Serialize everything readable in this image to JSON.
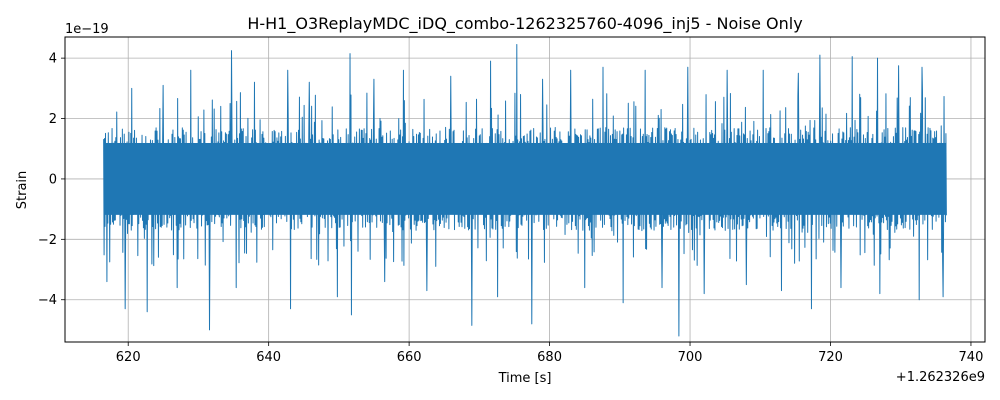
{
  "chart_data": {
    "type": "line",
    "title": "H-H1_O3ReplayMDC_iDQ_combo-1262325760-4096_inj5 - Noise Only",
    "xlabel": "Time [s]",
    "ylabel": "Strain",
    "x_offset_label": "+1.262326e9",
    "y_multiplier_label": "1e−19",
    "xlim": [
      611.0,
      742.0
    ],
    "ylim": [
      -5.4,
      4.7
    ],
    "x_ticks": [
      620,
      640,
      660,
      680,
      700,
      720,
      740
    ],
    "x_tick_labels": [
      "620",
      "640",
      "660",
      "680",
      "700",
      "720",
      "740"
    ],
    "y_ticks": [
      -4,
      -2,
      0,
      2,
      4
    ],
    "y_tick_labels": [
      "−4",
      "−2",
      "0",
      "2",
      "4"
    ],
    "grid": true,
    "series": [
      {
        "color": "#1f77b4",
        "x_start": 616.5,
        "x_end": 736.5,
        "typical_band": [
          -1.7,
          1.7
        ],
        "samples_shown_as": "dense noise trace",
        "peaks": [
          [
            617.0,
            3.4
          ],
          [
            620.5,
            3.0
          ],
          [
            622.7,
            4.2
          ],
          [
            625.0,
            3.1
          ],
          [
            628.9,
            3.6
          ],
          [
            634.7,
            4.25
          ],
          [
            638.0,
            3.2
          ],
          [
            642.7,
            3.6
          ],
          [
            645.8,
            3.2
          ],
          [
            651.6,
            4.15
          ],
          [
            655.0,
            3.3
          ],
          [
            659.2,
            3.6
          ],
          [
            665.9,
            3.4
          ],
          [
            671.6,
            3.9
          ],
          [
            675.3,
            4.45
          ],
          [
            679.0,
            3.3
          ],
          [
            683.0,
            3.6
          ],
          [
            687.6,
            3.7
          ],
          [
            693.6,
            3.6
          ],
          [
            699.7,
            3.7
          ],
          [
            705.3,
            3.6
          ],
          [
            710.4,
            3.6
          ],
          [
            715.4,
            3.5
          ],
          [
            718.5,
            4.1
          ],
          [
            723.1,
            4.05
          ],
          [
            726.7,
            4.0
          ],
          [
            729.7,
            3.75
          ],
          [
            733.0,
            3.7
          ],
          [
            736.0,
            3.2
          ]
        ],
        "troughs": [
          [
            617.0,
            -3.4
          ],
          [
            619.6,
            -4.3
          ],
          [
            622.7,
            -4.4
          ],
          [
            627.0,
            -3.6
          ],
          [
            631.6,
            -5.0
          ],
          [
            635.4,
            -3.6
          ],
          [
            643.1,
            -4.3
          ],
          [
            649.8,
            -3.9
          ],
          [
            651.8,
            -4.5
          ],
          [
            656.5,
            -3.4
          ],
          [
            662.5,
            -3.7
          ],
          [
            668.9,
            -4.85
          ],
          [
            672.6,
            -3.9
          ],
          [
            677.5,
            -4.8
          ],
          [
            685.0,
            -3.6
          ],
          [
            690.5,
            -4.1
          ],
          [
            696.0,
            -3.6
          ],
          [
            698.4,
            -5.2
          ],
          [
            702.0,
            -3.8
          ],
          [
            708.0,
            -3.5
          ],
          [
            713.0,
            -3.7
          ],
          [
            717.3,
            -4.3
          ],
          [
            721.5,
            -3.6
          ],
          [
            727.0,
            -3.8
          ],
          [
            732.6,
            -4.0
          ],
          [
            736.0,
            -3.9
          ]
        ]
      }
    ]
  }
}
